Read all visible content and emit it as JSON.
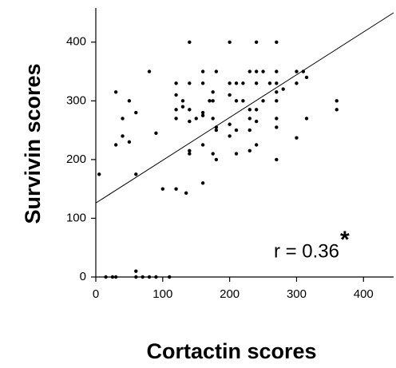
{
  "chart_data": {
    "type": "scatter",
    "x_label": "Cortactin scores",
    "y_label": "Survivin scores",
    "annotation": "r = 0.36",
    "significance_mark": "*",
    "color": "#000000",
    "x": [
      5,
      15,
      25,
      30,
      30,
      30,
      40,
      40,
      50,
      50,
      60,
      60,
      60,
      60,
      70,
      80,
      80,
      90,
      90,
      100,
      110,
      120,
      120,
      120,
      120,
      120,
      130,
      130,
      135,
      140,
      140,
      140,
      140,
      140,
      140,
      150,
      160,
      160,
      160,
      160,
      160,
      160,
      170,
      175,
      175,
      175,
      175,
      180,
      180,
      180,
      180,
      200,
      200,
      200,
      200,
      200,
      210,
      210,
      210,
      210,
      220,
      220,
      230,
      230,
      230,
      230,
      230,
      240,
      240,
      240,
      240,
      240,
      240,
      250,
      250,
      260,
      270,
      270,
      270,
      270,
      270,
      270,
      270,
      270,
      280,
      300,
      300,
      300,
      310,
      315,
      315,
      360,
      360
    ],
    "values": [
      175,
      0,
      0,
      0,
      315,
      225,
      240,
      270,
      300,
      230,
      280,
      175,
      10,
      0,
      0,
      350,
      0,
      245,
      0,
      150,
      0,
      150,
      330,
      310,
      285,
      270,
      300,
      290,
      143,
      400,
      330,
      285,
      265,
      215,
      210,
      270,
      350,
      330,
      280,
      275,
      160,
      225,
      300,
      315,
      300,
      270,
      210,
      255,
      250,
      350,
      200,
      400,
      330,
      260,
      240,
      310,
      330,
      300,
      250,
      210,
      330,
      300,
      350,
      285,
      270,
      250,
      215,
      400,
      350,
      330,
      285,
      265,
      225,
      350,
      300,
      330,
      400,
      350,
      330,
      315,
      300,
      270,
      255,
      200,
      320,
      350,
      330,
      237,
      350,
      340,
      270,
      300,
      285
    ],
    "fit_line": {
      "x": [
        0,
        445
      ],
      "y": [
        126,
        450
      ]
    },
    "xlim": [
      0,
      445
    ],
    "ylim": [
      0,
      450
    ],
    "xticks": [
      0,
      100,
      200,
      300,
      400
    ],
    "yticks": [
      0,
      100,
      200,
      300,
      400
    ]
  }
}
